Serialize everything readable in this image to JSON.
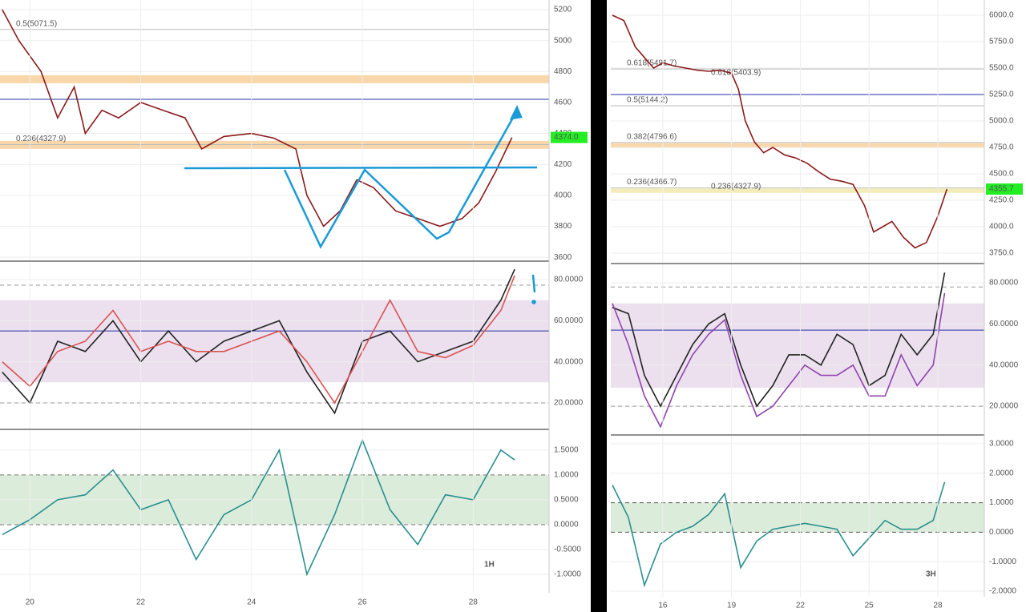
{
  "chart_data": [
    {
      "type": "line",
      "xlim": [
        19.46,
        29.37
      ],
      "ylim": [
        3580,
        5262
      ],
      "yticks": [
        3600,
        3800,
        4000,
        4200,
        4400,
        4600,
        4800,
        5000,
        5200
      ],
      "x": [
        19.5,
        19.8,
        20.2,
        20.5,
        20.8,
        21.0,
        21.3,
        21.6,
        22.0,
        22.4,
        22.8,
        23.1,
        23.5,
        24.0,
        24.4,
        24.8,
        25.0,
        25.3,
        25.6,
        25.9,
        26.2,
        26.6,
        27.0,
        27.4,
        27.8,
        28.1,
        28.4,
        28.7
      ],
      "series": [
        {
          "color": "#8b1a1a",
          "values": [
            5200,
            5000,
            4800,
            4500,
            4700,
            4400,
            4550,
            4500,
            4600,
            4550,
            4500,
            4300,
            4380,
            4400,
            4370,
            4300,
            4000,
            3800,
            3900,
            4100,
            4050,
            3900,
            3850,
            3800,
            3850,
            3950,
            4150,
            4374
          ]
        }
      ],
      "bands": [
        {
          "from": 4724,
          "to": 4776,
          "color": "#f7c98d"
        },
        {
          "from": 4300,
          "to": 4352,
          "color": "#f7c98d"
        }
      ],
      "levels": [
        {
          "value": 5071.5,
          "label": "0.5(5071.5)",
          "color": "#bbbbbb"
        },
        {
          "value": 4327.9,
          "label": "0.236(4327.9)",
          "color": "#bbbbbb"
        },
        {
          "value": 4620,
          "color": "#1f2fa8"
        }
      ],
      "price_tag": {
        "value": 4374,
        "label": "4374.0"
      }
    },
    {
      "type": "line",
      "xlim": [
        19.46,
        29.37
      ],
      "ylim": [
        7.5,
        88.6
      ],
      "yticks": [
        {
          "value": 20,
          "label": "20.0000"
        },
        {
          "value": 40,
          "label": "40.0000"
        },
        {
          "value": 60,
          "label": "60.0000"
        },
        {
          "value": 80,
          "label": "80.0000"
        }
      ],
      "x": [
        19.5,
        20,
        20.5,
        21,
        21.5,
        22,
        22.5,
        23,
        23.5,
        24,
        24.5,
        25,
        25.5,
        26,
        26.5,
        27,
        27.5,
        28,
        28.5,
        28.75
      ],
      "series": [
        {
          "color": "#222222",
          "values": [
            35,
            20,
            50,
            45,
            60,
            40,
            55,
            40,
            50,
            55,
            60,
            35,
            15,
            50,
            55,
            40,
            45,
            50,
            70,
            85
          ]
        },
        {
          "color": "#d9534f",
          "values": [
            40,
            28,
            45,
            50,
            65,
            45,
            50,
            45,
            45,
            50,
            55,
            40,
            20,
            45,
            70,
            45,
            42,
            48,
            65,
            82
          ]
        }
      ],
      "bands": [
        {
          "from": 30,
          "to": 70,
          "color": "#e6d5ea"
        }
      ],
      "levels": [
        {
          "value": 77.3,
          "color": "#999999",
          "dash": true
        },
        {
          "value": 20,
          "color": "#999999",
          "dash": true
        },
        {
          "value": 55,
          "color": "#1f2fa8"
        }
      ]
    },
    {
      "type": "line",
      "xlim": [
        19.46,
        29.37
      ],
      "ylim": [
        -1.37,
        1.9
      ],
      "yticks": [
        {
          "value": -1,
          "label": "-1.0000"
        },
        {
          "value": -0.5,
          "label": "-0.5000"
        },
        {
          "value": 0,
          "label": "0.0000"
        },
        {
          "value": 0.5,
          "label": "0.5000"
        },
        {
          "value": 1,
          "label": "1.0000"
        },
        {
          "value": 1.5,
          "label": "1.5000"
        }
      ],
      "xticks": [
        20,
        22,
        24,
        26,
        28
      ],
      "x": [
        19.5,
        20,
        20.5,
        21,
        21.5,
        22,
        22.5,
        23,
        23.5,
        24,
        24.5,
        25,
        25.5,
        26,
        26.5,
        27,
        27.5,
        28,
        28.5,
        28.75
      ],
      "series": [
        {
          "color": "#2a8f8f",
          "values": [
            -0.2,
            0.1,
            0.5,
            0.6,
            1.1,
            0.3,
            0.5,
            -0.7,
            0.2,
            0.5,
            1.5,
            -1.0,
            0.2,
            1.7,
            0.3,
            -0.4,
            0.6,
            0.5,
            1.5,
            1.3
          ]
        }
      ],
      "bands": [
        {
          "from": 0,
          "to": 1,
          "color": "#cfe5cf"
        }
      ],
      "levels": [
        {
          "value": 1,
          "color": "#777777",
          "dash": true
        },
        {
          "value": 0,
          "color": "#777777",
          "dash": true
        }
      ],
      "label": "1H"
    },
    {
      "type": "line",
      "xlim": [
        13.73,
        30.03
      ],
      "ylim": [
        3659,
        6144
      ],
      "yticks": [
        {
          "value": 3750,
          "label": "3750.0"
        },
        {
          "value": 4000,
          "label": "4000.0"
        },
        {
          "value": 4250,
          "label": "4250.0"
        },
        {
          "value": 4500,
          "label": "4500.0"
        },
        {
          "value": 4750,
          "label": "4750.0"
        },
        {
          "value": 5000,
          "label": "5000.0"
        },
        {
          "value": 5250,
          "label": "5250.0"
        },
        {
          "value": 5500,
          "label": "5500.0"
        },
        {
          "value": 5750,
          "label": "5750.0"
        },
        {
          "value": 6000,
          "label": "6000.0"
        }
      ],
      "x": [
        13.8,
        14.3,
        14.8,
        15.2,
        15.6,
        16.0,
        16.5,
        17.0,
        17.5,
        18.0,
        18.5,
        19.0,
        19.3,
        19.6,
        20.0,
        20.4,
        20.8,
        21.3,
        21.8,
        22.3,
        22.8,
        23.3,
        23.8,
        24.3,
        24.8,
        25.2,
        25.6,
        26.0,
        26.5,
        27.0,
        27.5,
        28.0,
        28.4
      ],
      "series": [
        {
          "color": "#8b1a1a",
          "values": [
            6000,
            5950,
            5700,
            5600,
            5500,
            5550,
            5520,
            5500,
            5480,
            5470,
            5480,
            5450,
            5300,
            5000,
            4800,
            4700,
            4750,
            4680,
            4650,
            4600,
            4520,
            4450,
            4430,
            4400,
            4200,
            3950,
            4000,
            4050,
            3900,
            3800,
            3850,
            4100,
            4355.7
          ]
        }
      ],
      "bands": [
        {
          "from": 4745,
          "to": 4790,
          "color": "#f7c98d"
        },
        {
          "from": 4320,
          "to": 4360,
          "color": "#f0e6a0"
        }
      ],
      "levels": [
        {
          "value": 5491.7,
          "label": "0.618(5491.7)",
          "color": "#bbbbbb"
        },
        {
          "value": 5144.2,
          "label": "0.5(5144.2)",
          "color": "#bbbbbb"
        },
        {
          "value": 4796.6,
          "label": "0.382(4796.6)",
          "color": "#bbbbbb"
        },
        {
          "value": 4366.7,
          "label": "0.236(4366.7)",
          "color": "#bbbbbb"
        },
        {
          "value": 5250,
          "color": "#1f2fa8"
        }
      ],
      "levels2": [
        {
          "value": 5403.9,
          "label": "0.618(5403.9)"
        },
        {
          "value": 4327.9,
          "label": "0.236(4327.9)"
        }
      ],
      "price_tag": {
        "value": 4355.7,
        "label": "4355.7"
      }
    },
    {
      "type": "line",
      "xlim": [
        13.73,
        30.03
      ],
      "ylim": [
        6.4,
        89
      ],
      "yticks": [
        {
          "value": 20,
          "label": "20.0000"
        },
        {
          "value": 40,
          "label": "40.0000"
        },
        {
          "value": 60,
          "label": "60.0000"
        },
        {
          "value": 80,
          "label": "80.0000"
        }
      ],
      "x": [
        13.8,
        14.5,
        15.2,
        15.9,
        16.6,
        17.3,
        18,
        18.7,
        19.4,
        20.1,
        20.8,
        21.5,
        22.2,
        22.9,
        23.6,
        24.3,
        25,
        25.7,
        26.4,
        27.1,
        27.8,
        28.3
      ],
      "series": [
        {
          "color": "#222222",
          "values": [
            68,
            65,
            35,
            20,
            35,
            50,
            60,
            65,
            40,
            20,
            30,
            45,
            45,
            40,
            55,
            50,
            30,
            35,
            55,
            45,
            55,
            85
          ]
        },
        {
          "color": "#8e44ad",
          "values": [
            70,
            50,
            25,
            10,
            30,
            45,
            55,
            62,
            35,
            15,
            20,
            30,
            40,
            35,
            35,
            40,
            25,
            25,
            45,
            30,
            40,
            75
          ]
        }
      ],
      "bands": [
        {
          "from": 29,
          "to": 70,
          "color": "#e6d5ea"
        }
      ],
      "levels": [
        {
          "value": 78,
          "color": "#999999",
          "dash": true
        },
        {
          "value": 20,
          "color": "#999999",
          "dash": true
        },
        {
          "value": 57,
          "color": "#1f2fa8"
        }
      ]
    },
    {
      "type": "line",
      "xlim": [
        13.73,
        30.03
      ],
      "ylim": [
        -2.19,
        3.27
      ],
      "yticks": [
        {
          "value": -2,
          "label": "-2.0000"
        },
        {
          "value": -1,
          "label": "-1.0000"
        },
        {
          "value": 0,
          "label": "0.0000"
        },
        {
          "value": 1,
          "label": "1.0000"
        },
        {
          "value": 2,
          "label": "2.0000"
        },
        {
          "value": 3,
          "label": "3.0000"
        }
      ],
      "xticks": [
        16,
        19,
        22,
        25,
        28
      ],
      "x": [
        13.8,
        14.5,
        15.2,
        15.9,
        16.6,
        17.3,
        18,
        18.7,
        19.4,
        20.1,
        20.8,
        21.5,
        22.2,
        22.9,
        23.6,
        24.3,
        25,
        25.7,
        26.4,
        27.1,
        27.8,
        28.3
      ],
      "series": [
        {
          "color": "#2a8f8f",
          "values": [
            1.6,
            0.5,
            -1.8,
            -0.4,
            0,
            0.2,
            0.6,
            1.3,
            -1.2,
            -0.3,
            0.1,
            0.2,
            0.3,
            0.2,
            0.1,
            -0.8,
            -0.2,
            0.4,
            0.1,
            0.1,
            0.4,
            1.7
          ]
        }
      ],
      "bands": [
        {
          "from": 0,
          "to": 1,
          "color": "#cfe5cf"
        }
      ],
      "levels": [
        {
          "value": 1,
          "color": "#555555",
          "dash": true
        },
        {
          "value": 0,
          "color": "#555555",
          "dash": true
        }
      ],
      "label": "3H"
    }
  ]
}
